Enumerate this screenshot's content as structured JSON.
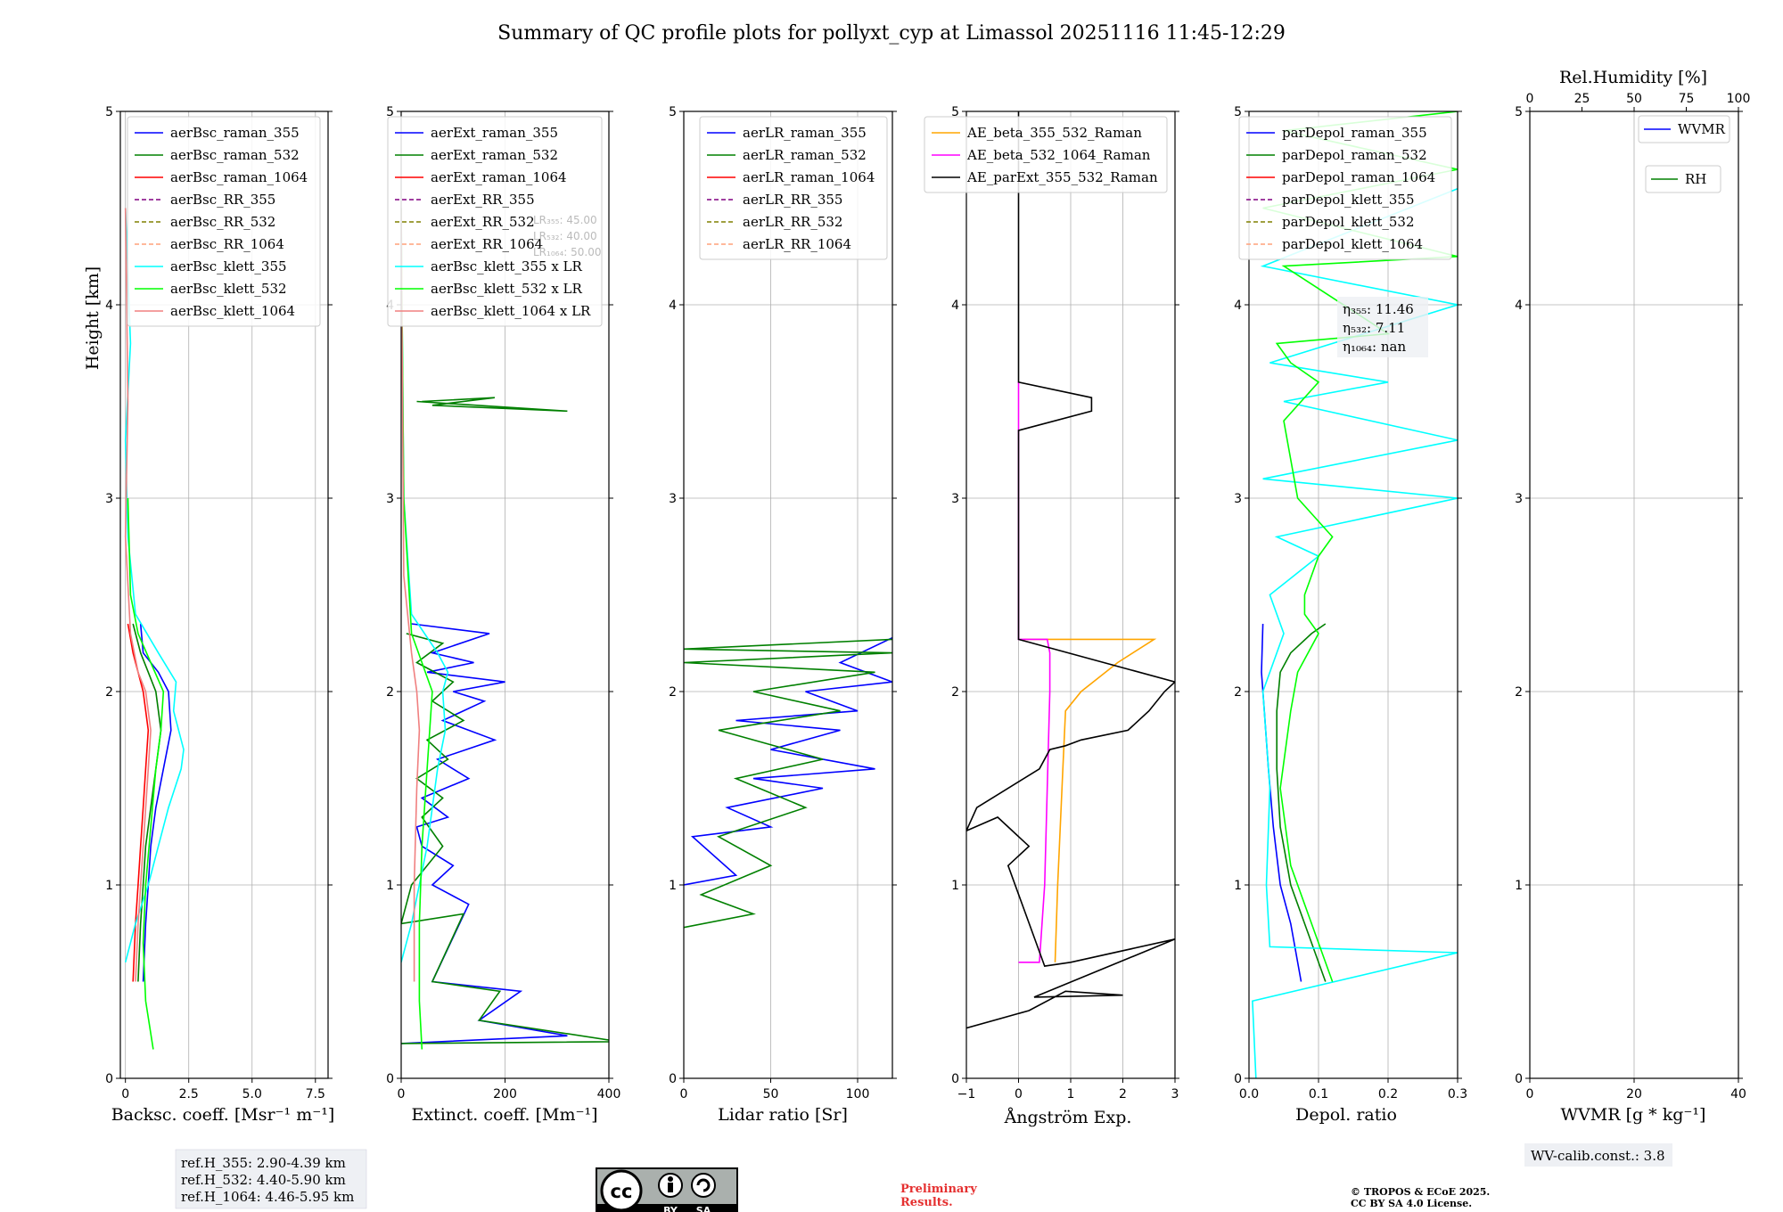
{
  "title": "Summary of QC profile plots for pollyxt_cyp at Limassol 20251116 11:45-12:29",
  "colors": {
    "raman355": "#0000ff",
    "raman532": "#008000",
    "raman1064": "#ff0000",
    "rr355": "#800080",
    "rr532": "#808000",
    "rr1064": "#ffa07a",
    "klett355": "#00ffff",
    "klett532": "#00ff00",
    "klett1064": "#f08080",
    "ae1": "#ffa500",
    "ae2": "#ff00ff",
    "ae3": "#000000"
  },
  "chart_data": [
    {
      "type": "line",
      "xlabel": "Backsc. coeff. [Msr⁻¹ m⁻¹]",
      "ylabel": "Height [km]",
      "xlim": [
        -0.2,
        8
      ],
      "ylim": [
        0,
        5
      ],
      "xticks": [
        "0",
        "2.5",
        "5.0",
        "7.5"
      ],
      "yticks": [
        "0",
        "1",
        "2",
        "3",
        "4",
        "5"
      ],
      "legend": [
        "aerBsc_raman_355",
        "aerBsc_raman_532",
        "aerBsc_raman_1064",
        "aerBsc_RR_355",
        "aerBsc_RR_532",
        "aerBsc_RR_1064",
        "aerBsc_klett_355",
        "aerBsc_klett_532",
        "aerBsc_klett_1064"
      ],
      "series": [
        {
          "name": "aerBsc_raman_355",
          "x": [
            0.7,
            0.8,
            0.9,
            1.0,
            1.2,
            1.5,
            1.8,
            1.7,
            1.3,
            0.7,
            0.6
          ],
          "y": [
            0.5,
            0.8,
            1.0,
            1.2,
            1.4,
            1.6,
            1.8,
            2.0,
            2.1,
            2.2,
            2.35
          ]
        },
        {
          "name": "aerBsc_raman_532",
          "x": [
            0.5,
            0.6,
            0.7,
            0.8,
            1.0,
            1.2,
            1.4,
            1.2,
            0.9,
            0.6,
            0.3
          ],
          "y": [
            0.5,
            0.8,
            1.0,
            1.2,
            1.4,
            1.6,
            1.8,
            2.0,
            2.1,
            2.2,
            2.35
          ]
        },
        {
          "name": "aerBsc_raman_1064",
          "x": [
            0.3,
            0.4,
            0.5,
            0.6,
            0.7,
            0.8,
            0.9,
            0.7,
            0.5,
            0.3,
            0.1
          ],
          "y": [
            0.5,
            0.8,
            1.0,
            1.2,
            1.4,
            1.6,
            1.8,
            2.0,
            2.1,
            2.2,
            2.35
          ]
        },
        {
          "name": "aerBsc_klett_355",
          "x": [
            0.0,
            0.4,
            0.9,
            1.3,
            1.7,
            2.2,
            2.3,
            1.9,
            2.0,
            1.3,
            0.4,
            0.1,
            0.0,
            0.2,
            0.0
          ],
          "y": [
            0.6,
            0.8,
            1.0,
            1.2,
            1.4,
            1.6,
            1.7,
            1.9,
            2.05,
            2.2,
            2.4,
            2.8,
            3.3,
            3.8,
            4.5
          ]
        },
        {
          "name": "aerBsc_klett_532",
          "x": [
            1.1,
            0.8,
            0.7,
            0.8,
            1.0,
            1.2,
            1.4,
            1.5,
            1.0,
            0.5,
            0.2,
            0.1
          ],
          "y": [
            0.15,
            0.4,
            0.7,
            1.0,
            1.3,
            1.6,
            1.8,
            2.0,
            2.15,
            2.3,
            2.5,
            3.0
          ]
        },
        {
          "name": "aerBsc_klett_1064",
          "x": [
            0.4,
            0.5,
            0.7,
            0.9,
            1.0,
            0.8,
            0.5,
            0.2,
            0.0,
            0.1,
            0.0
          ],
          "y": [
            0.5,
            0.8,
            1.2,
            1.6,
            1.8,
            2.0,
            2.1,
            2.3,
            2.8,
            3.5,
            4.5
          ]
        }
      ]
    },
    {
      "type": "line",
      "xlabel": "Extinct. coeff. [Mm⁻¹]",
      "xlim": [
        0,
        400
      ],
      "ylim": [
        0,
        5
      ],
      "xticks": [
        "0",
        "200",
        "400"
      ],
      "yticks": [
        "0",
        "1",
        "2",
        "3",
        "4",
        "5"
      ],
      "legend": [
        "aerExt_raman_355",
        "aerExt_raman_532",
        "aerExt_raman_1064",
        "aerExt_RR_355",
        "aerExt_RR_532",
        "aerExt_RR_1064",
        "aerBsc_klett_355 x LR",
        "aerBsc_klett_532 x LR",
        "aerBsc_klett_1064 x LR"
      ],
      "lidar_ratios": [
        "LR₃₅₅: 45.00",
        "LR₅₃₂: 40.00",
        "LR₁₀₆₄: 50.00"
      ],
      "series": [
        {
          "name": "aerExt_raman_355",
          "x": [
            0,
            320,
            150,
            230,
            60,
            130,
            60,
            100,
            40,
            30,
            90,
            40,
            130,
            70,
            180,
            80,
            160,
            100,
            200,
            50,
            140,
            60,
            170,
            20
          ],
          "y": [
            0.18,
            0.22,
            0.3,
            0.45,
            0.5,
            0.9,
            1.0,
            1.1,
            1.2,
            1.3,
            1.35,
            1.45,
            1.55,
            1.65,
            1.75,
            1.85,
            1.95,
            2.0,
            2.05,
            2.1,
            2.15,
            2.2,
            2.3,
            2.35
          ]
        },
        {
          "name": "aerExt_raman_532",
          "x": [
            0,
            420,
            150,
            190,
            60,
            120,
            0,
            20,
            80,
            40,
            80,
            30,
            90,
            50,
            120,
            60,
            100,
            30,
            80,
            10
          ],
          "y": [
            0.18,
            0.19,
            0.3,
            0.45,
            0.5,
            0.85,
            0.8,
            1.0,
            1.2,
            1.35,
            1.45,
            1.55,
            1.65,
            1.75,
            1.85,
            1.95,
            2.05,
            2.15,
            2.25,
            2.3
          ]
        },
        {
          "name": "aerExt_raman_532_upper",
          "x": [
            30,
            320,
            60,
            180,
            40
          ],
          "y": [
            3.5,
            3.45,
            3.48,
            3.52,
            3.5
          ]
        },
        {
          "name": "aerBsc_klett_355 x LR",
          "x": [
            0,
            20,
            50,
            70,
            85,
            80,
            90,
            70,
            20,
            5,
            0
          ],
          "y": [
            0.6,
            0.8,
            1.2,
            1.6,
            1.8,
            2.0,
            2.1,
            2.2,
            2.4,
            3.0,
            4.5
          ]
        },
        {
          "name": "aerBsc_klett_532 x LR",
          "x": [
            40,
            35,
            35,
            40,
            50,
            55,
            60,
            40,
            20,
            5,
            0
          ],
          "y": [
            0.15,
            0.4,
            0.8,
            1.2,
            1.6,
            1.8,
            2.0,
            2.15,
            2.3,
            3.0,
            4.5
          ]
        },
        {
          "name": "aerBsc_klett_1064 x LR",
          "x": [
            25,
            25,
            30,
            35,
            30,
            20,
            5,
            0
          ],
          "y": [
            0.5,
            1.0,
            1.5,
            1.8,
            2.0,
            2.2,
            2.6,
            4.5
          ]
        }
      ]
    },
    {
      "type": "line",
      "xlabel": "Lidar ratio [Sr]",
      "xlim": [
        0,
        120
      ],
      "ylim": [
        0,
        5
      ],
      "xticks": [
        "0",
        "50",
        "100"
      ],
      "yticks": [
        "0",
        "1",
        "2",
        "3",
        "4",
        "5"
      ],
      "legend": [
        "aerLR_raman_355",
        "aerLR_raman_532",
        "aerLR_raman_1064",
        "aerLR_RR_355",
        "aerLR_RR_532",
        "aerLR_RR_1064"
      ],
      "series": [
        {
          "name": "aerLR_raman_355",
          "x": [
            0,
            30,
            5,
            50,
            25,
            80,
            40,
            110,
            50,
            90,
            30,
            100,
            70,
            120,
            90,
            125
          ],
          "y": [
            1.0,
            1.05,
            1.25,
            1.3,
            1.4,
            1.5,
            1.55,
            1.6,
            1.7,
            1.8,
            1.85,
            1.9,
            2.0,
            2.05,
            2.15,
            2.3
          ]
        },
        {
          "name": "aerLR_raman_532",
          "x": [
            0,
            40,
            10,
            50,
            20,
            70,
            30,
            80,
            20,
            90,
            40,
            110,
            0,
            120,
            0,
            120
          ],
          "y": [
            0.78,
            0.85,
            0.95,
            1.1,
            1.25,
            1.4,
            1.55,
            1.65,
            1.8,
            1.9,
            2.0,
            2.1,
            2.15,
            2.2,
            2.22,
            2.27
          ]
        }
      ]
    },
    {
      "type": "line",
      "xlabel": "Ångström Exp.",
      "xlim": [
        -1,
        3
      ],
      "ylim": [
        0,
        5
      ],
      "xticks": [
        "−1",
        "0",
        "1",
        "2",
        "3"
      ],
      "yticks": [
        "0",
        "1",
        "2",
        "3",
        "4",
        "5"
      ],
      "legend": [
        "AE_beta_355_532_Raman",
        "AE_beta_532_1064_Raman",
        "AE_parExt_355_532_Raman"
      ],
      "series": [
        {
          "name": "AE_beta_355_532_Raman",
          "x": [
            0.7,
            0.75,
            0.8,
            0.85,
            0.9,
            1.2,
            1.9,
            2.6,
            0.1
          ],
          "y": [
            0.6,
            1.0,
            1.3,
            1.6,
            1.9,
            2.0,
            2.15,
            2.27,
            2.27
          ]
        },
        {
          "name": "AE_beta_532_1064_Raman",
          "x": [
            0.0,
            0.4,
            0.5,
            0.55,
            0.6,
            0.6,
            0.55,
            0.0,
            0.0
          ],
          "y": [
            0.6,
            0.6,
            1.0,
            1.5,
            2.0,
            2.2,
            2.27,
            2.27,
            3.6
          ]
        },
        {
          "name": "AE_parExt_355_532_Raman",
          "x": [
            -1.0,
            0.2,
            0.9,
            2.0,
            0.3,
            3.0,
            1.0,
            0.5,
            -0.2,
            0.2,
            -0.4,
            -1.0,
            -0.8,
            0.4,
            0.6,
            0.9,
            1.2,
            2.1,
            2.5,
            2.8,
            3.0,
            0.0,
            0.0,
            1.4,
            1.4,
            0.0,
            0.0
          ],
          "y": [
            0.26,
            0.35,
            0.45,
            0.43,
            0.42,
            0.72,
            0.6,
            0.58,
            1.1,
            1.2,
            1.35,
            1.28,
            1.4,
            1.6,
            1.7,
            1.72,
            1.75,
            1.8,
            1.9,
            2.0,
            2.05,
            2.27,
            3.35,
            3.45,
            3.52,
            3.6,
            5.0
          ]
        }
      ]
    },
    {
      "type": "line",
      "xlabel": "Depol. ratio",
      "xlim": [
        0,
        0.3
      ],
      "ylim": [
        0,
        5
      ],
      "xticks": [
        "0.0",
        "0.1",
        "0.2",
        "0.3"
      ],
      "yticks": [
        "0",
        "1",
        "2",
        "3",
        "4",
        "5"
      ],
      "legend": [
        "parDepol_raman_355",
        "parDepol_raman_532",
        "parDepol_raman_1064",
        "parDepol_klett_355",
        "parDepol_klett_532",
        "parDepol_klett_1064"
      ],
      "angstrom": [
        "η₃₅₅: 11.46",
        "η₅₃₂: 7.11",
        "η₁₀₆₄: nan"
      ],
      "series": [
        {
          "name": "parDepol_raman_355",
          "x": [
            0.075,
            0.06,
            0.045,
            0.035,
            0.028,
            0.022,
            0.018,
            0.02
          ],
          "y": [
            0.5,
            0.8,
            1.0,
            1.3,
            1.6,
            1.9,
            2.1,
            2.35
          ]
        },
        {
          "name": "parDepol_raman_532",
          "x": [
            0.11,
            0.08,
            0.06,
            0.045,
            0.04,
            0.04,
            0.045,
            0.06,
            0.09,
            0.11
          ],
          "y": [
            0.5,
            0.8,
            1.0,
            1.3,
            1.6,
            1.9,
            2.1,
            2.2,
            2.3,
            2.35
          ]
        },
        {
          "name": "parDepol_klett_355",
          "x": [
            0.01,
            0.005,
            0.3,
            0.03,
            0.025,
            0.03,
            0.02,
            0.05,
            0.03,
            0.1,
            0.04,
            0.3,
            0.02,
            0.3,
            0.05,
            0.2,
            0.03,
            0.3,
            0.02,
            0.3
          ],
          "y": [
            0.0,
            0.4,
            0.65,
            0.68,
            1.0,
            1.5,
            2.0,
            2.3,
            2.5,
            2.7,
            2.8,
            3.0,
            3.1,
            3.3,
            3.5,
            3.6,
            3.7,
            4.0,
            4.2,
            4.6
          ]
        },
        {
          "name": "parDepol_klett_532",
          "x": [
            0.12,
            0.09,
            0.06,
            0.045,
            0.06,
            0.07,
            0.1,
            0.08,
            0.08,
            0.1,
            0.12,
            0.07,
            0.06,
            0.05,
            0.1,
            0.06,
            0.04,
            0.2,
            0.05,
            0.3,
            0.02,
            0.3,
            0.05,
            0.3
          ],
          "y": [
            0.5,
            0.8,
            1.1,
            1.5,
            1.9,
            2.1,
            2.3,
            2.4,
            2.5,
            2.7,
            2.8,
            3.0,
            3.2,
            3.4,
            3.6,
            3.7,
            3.8,
            3.85,
            4.2,
            4.25,
            4.5,
            4.7,
            4.9,
            5.0
          ]
        }
      ]
    },
    {
      "type": "line",
      "xlabel": "WVMR [g * kg⁻¹]",
      "top_xlabel": "Rel.Humidity [%]",
      "xlim": [
        0,
        40
      ],
      "ylim": [
        0,
        5
      ],
      "xticks": [
        "0",
        "20",
        "40"
      ],
      "top_xticks": [
        "0",
        "25",
        "50",
        "75",
        "100"
      ],
      "yticks": [
        "0",
        "1",
        "2",
        "3",
        "4",
        "5"
      ],
      "legend": [
        "WVMR",
        "RH"
      ],
      "series": []
    }
  ],
  "annotations": {
    "ref_heights": [
      "ref.H_355: 2.90-4.39 km",
      "ref.H_532: 4.40-5.90 km",
      "ref.H_1064: 4.46-5.95 km"
    ],
    "license_badge": [
      "cc",
      "BY",
      "SA"
    ],
    "preliminary": [
      "Preliminary",
      "Results."
    ],
    "copyright": [
      "© TROPOS & ECoE 2025.",
      "CC BY SA 4.0 License."
    ],
    "wv_calib": "WV-calib.const.: 3.8"
  }
}
